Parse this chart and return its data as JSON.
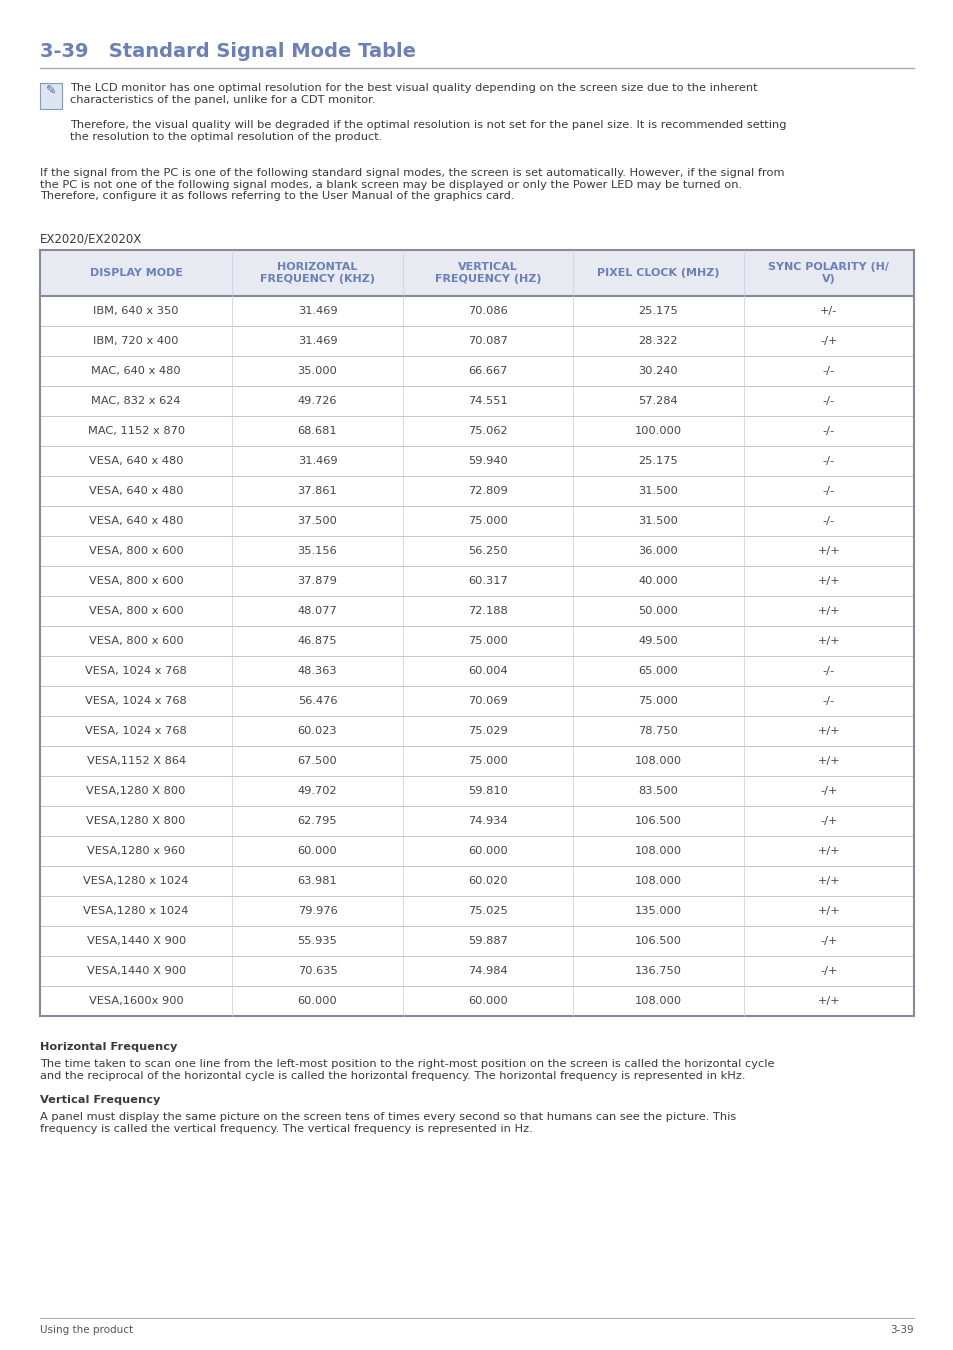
{
  "title": "3-39   Standard Signal Mode Table",
  "title_color": "#6b7fba",
  "title_fontsize": 14,
  "note_text1": "The LCD monitor has one optimal resolution for the best visual quality depending on the screen size due to the inherent\ncharacteristics of the panel, unlike for a CDT monitor.",
  "note_text2": "Therefore, the visual quality will be degraded if the optimal resolution is not set for the panel size. It is recommended setting\nthe resolution to the optimal resolution of the product.",
  "intro_text": "If the signal from the PC is one of the following standard signal modes, the screen is set automatically. However, if the signal from\nthe PC is not one of the following signal modes, a blank screen may be displayed or only the Power LED may be turned on.\nTherefore, configure it as follows referring to the User Manual of the graphics card.",
  "subtitle": "EX2020/EX2020X",
  "col_headers": [
    "DISPLAY MODE",
    "HORIZONTAL\nFREQUENCY (KHZ)",
    "VERTICAL\nFREQUENCY (HZ)",
    "PIXEL CLOCK (MHZ)",
    "SYNC POLARITY (H/\nV)"
  ],
  "col_header_color": "#6b7fba",
  "header_bg_color": "#e8eaf2",
  "table_rows": [
    [
      "IBM, 640 x 350",
      "31.469",
      "70.086",
      "25.175",
      "+/-"
    ],
    [
      "IBM, 720 x 400",
      "31.469",
      "70.087",
      "28.322",
      "-/+"
    ],
    [
      "MAC, 640 x 480",
      "35.000",
      "66.667",
      "30.240",
      "-/-"
    ],
    [
      "MAC, 832 x 624",
      "49.726",
      "74.551",
      "57.284",
      "-/-"
    ],
    [
      "MAC, 1152 x 870",
      "68.681",
      "75.062",
      "100.000",
      "-/-"
    ],
    [
      "VESA, 640 x 480",
      "31.469",
      "59.940",
      "25.175",
      "-/-"
    ],
    [
      "VESA, 640 x 480",
      "37.861",
      "72.809",
      "31.500",
      "-/-"
    ],
    [
      "VESA, 640 x 480",
      "37.500",
      "75.000",
      "31.500",
      "-/-"
    ],
    [
      "VESA, 800 x 600",
      "35.156",
      "56.250",
      "36.000",
      "+/+"
    ],
    [
      "VESA, 800 x 600",
      "37.879",
      "60.317",
      "40.000",
      "+/+"
    ],
    [
      "VESA, 800 x 600",
      "48.077",
      "72.188",
      "50.000",
      "+/+"
    ],
    [
      "VESA, 800 x 600",
      "46.875",
      "75.000",
      "49.500",
      "+/+"
    ],
    [
      "VESA, 1024 x 768",
      "48.363",
      "60.004",
      "65.000",
      "-/-"
    ],
    [
      "VESA, 1024 x 768",
      "56.476",
      "70.069",
      "75.000",
      "-/-"
    ],
    [
      "VESA, 1024 x 768",
      "60.023",
      "75.029",
      "78.750",
      "+/+"
    ],
    [
      "VESA,1152 X 864",
      "67.500",
      "75.000",
      "108.000",
      "+/+"
    ],
    [
      "VESA,1280 X 800",
      "49.702",
      "59.810",
      "83.500",
      "-/+"
    ],
    [
      "VESA,1280 X 800",
      "62.795",
      "74.934",
      "106.500",
      "-/+"
    ],
    [
      "VESA,1280 x 960",
      "60.000",
      "60.000",
      "108.000",
      "+/+"
    ],
    [
      "VESA,1280 x 1024",
      "63.981",
      "60.020",
      "108.000",
      "+/+"
    ],
    [
      "VESA,1280 x 1024",
      "79.976",
      "75.025",
      "135.000",
      "+/+"
    ],
    [
      "VESA,1440 X 900",
      "55.935",
      "59.887",
      "106.500",
      "-/+"
    ],
    [
      "VESA,1440 X 900",
      "70.635",
      "74.984",
      "136.750",
      "-/+"
    ],
    [
      "VESA,1600x 900",
      "60.000",
      "60.000",
      "108.000",
      "+/+"
    ]
  ],
  "hfreq_label": "Horizontal Frequency",
  "hfreq_text": "The time taken to scan one line from the left-most position to the right-most position on the screen is called the horizontal cycle\nand the reciprocal of the horizontal cycle is called the horizontal frequency. The horizontal frequency is represented in kHz.",
  "vfreq_label": "Vertical Frequency",
  "vfreq_text": "A panel must display the same picture on the screen tens of times every second so that humans can see the picture. This\nfrequency is called the vertical frequency. The vertical frequency is represented in Hz.",
  "footer_left": "Using the product",
  "footer_right": "3-39",
  "bg_color": "#ffffff",
  "text_color": "#3a3a3a",
  "table_text_color": "#444444",
  "line_color": "#aaaaaa",
  "thick_line_color": "#888899"
}
